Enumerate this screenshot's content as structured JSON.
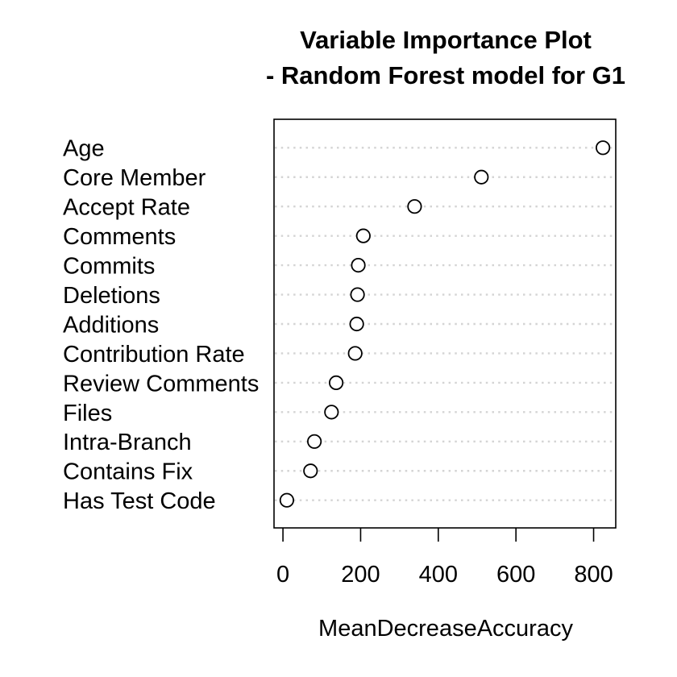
{
  "title": {
    "line1": "Variable Importance Plot",
    "line2": "- Random Forest model for G1"
  },
  "chart_data": {
    "type": "scatter",
    "subtype": "dotchart",
    "title": "Variable Importance Plot - Random Forest model for G1",
    "categories": [
      "Age",
      "Core Member",
      "Accept Rate",
      "Comments",
      "Commits",
      "Deletions",
      "Additions",
      "Contribution Rate",
      "Review Comments",
      "Files",
      "Intra-Branch",
      "Contains Fix",
      "Has Test Code"
    ],
    "values": [
      824,
      511,
      339,
      207,
      194,
      192,
      190,
      186,
      137,
      125,
      81,
      71,
      10
    ],
    "xlabel": "MeanDecreaseAccuracy",
    "ylabel": "",
    "x_ticks": [
      0,
      200,
      400,
      600,
      800
    ],
    "x_tick_labels": [
      "0",
      "200",
      "400",
      "600",
      "800"
    ],
    "xlim": [
      -23,
      857
    ],
    "grid": "horizontal-dotted",
    "legend": "none",
    "colors": {
      "background": "#ffffff",
      "text": "#000000",
      "box": "#000000",
      "grid": "#d4d4d4",
      "point_fill": "#ffffff",
      "point_stroke": "#000000"
    }
  }
}
